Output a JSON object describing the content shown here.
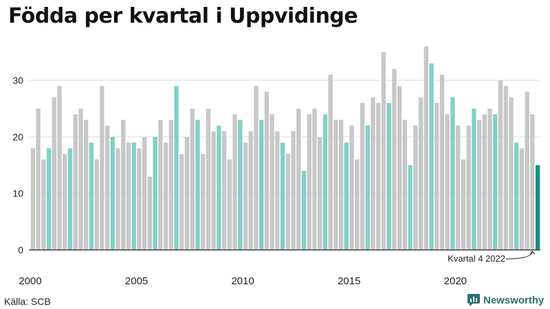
{
  "title": "Födda per kvartal i Uppvidinge",
  "source": "Källa: SCB",
  "brand": "Newsworthy",
  "annotation": "Kvartal 4 2022",
  "colors": {
    "gray": "#c8c8c8",
    "q4": "#82d0c8",
    "latest": "#1a8f82",
    "grid": "#dddddd",
    "axis": "#222222",
    "brand": "#2a6f70"
  },
  "chart_data": {
    "type": "bar",
    "title": "Födda per kvartal i Uppvidinge",
    "ylim": [
      0,
      36
    ],
    "yticks": [
      0,
      10,
      20,
      30
    ],
    "xtick_labels": [
      {
        "year": 2000,
        "label": "2000"
      },
      {
        "year": 2005,
        "label": "2005"
      },
      {
        "year": 2010,
        "label": "2010"
      },
      {
        "year": 2015,
        "label": "2015"
      },
      {
        "year": 2020,
        "label": "2020"
      }
    ],
    "grid": "horizontal",
    "start_year": 2000,
    "start_quarter": 1,
    "highlight": "Kvartal 4 markerat, senaste kvartalet mörkare",
    "values": [
      18,
      25,
      16,
      18,
      27,
      29,
      17,
      18,
      24,
      25,
      23,
      19,
      16,
      29,
      22,
      20,
      18,
      23,
      19,
      19,
      18,
      20,
      13,
      20,
      23,
      19,
      23,
      29,
      17,
      20,
      25,
      23,
      17,
      25,
      21,
      22,
      21,
      16,
      24,
      23,
      19,
      21,
      29,
      23,
      28,
      24,
      21,
      19,
      17,
      21,
      25,
      14,
      24,
      25,
      20,
      24,
      31,
      23,
      23,
      19,
      22,
      16,
      26,
      22,
      27,
      26,
      35,
      26,
      32,
      29,
      23,
      15,
      22,
      27,
      36,
      33,
      26,
      31,
      24,
      27,
      22,
      16,
      22,
      25,
      23,
      24,
      25,
      24,
      30,
      29,
      27,
      19,
      18,
      28,
      24,
      15
    ]
  }
}
